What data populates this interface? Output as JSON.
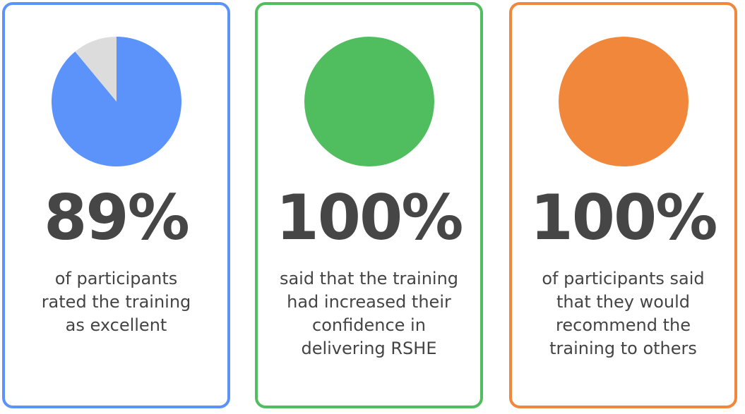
{
  "chart_data": [
    {
      "type": "pie",
      "slices": [
        {
          "label": "excellent",
          "value": 89,
          "color": "#5b93fb"
        },
        {
          "label": "other",
          "value": 11,
          "color": "#dcdcdc"
        }
      ],
      "headline": "89%",
      "caption": "of participants rated the training as excellent",
      "border_color": "#5b93fb"
    },
    {
      "type": "pie",
      "slices": [
        {
          "label": "increased confidence",
          "value": 100,
          "color": "#50bd5e"
        }
      ],
      "headline": "100%",
      "caption": "said that the training had increased their confidence in delivering RSHE",
      "border_color": "#50bd5e"
    },
    {
      "type": "pie",
      "slices": [
        {
          "label": "would recommend",
          "value": 100,
          "color": "#f1873b"
        }
      ],
      "headline": "100%",
      "caption": "of participants said that they would recommend the training to others",
      "border_color": "#f1873b"
    }
  ]
}
